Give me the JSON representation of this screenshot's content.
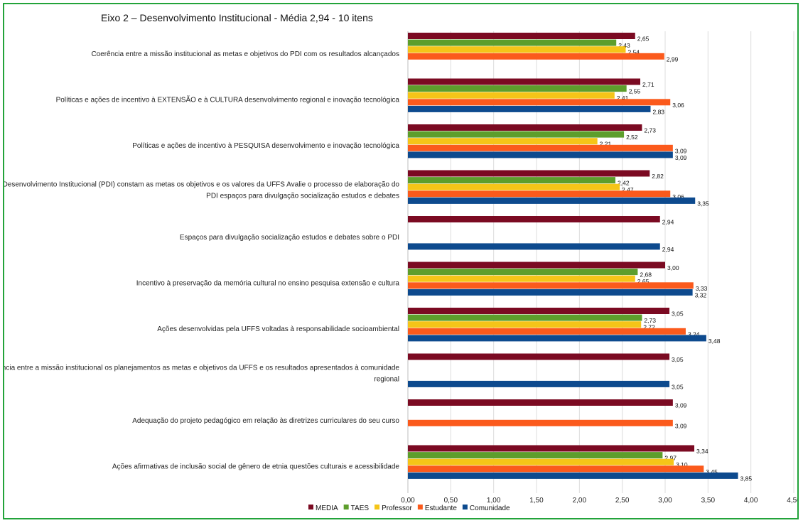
{
  "chart_data": {
    "type": "bar",
    "orientation": "horizontal",
    "title": "Eixo 2 – Desenvolvimento Institucional - Média 2,94 - 10 itens",
    "xlim": [
      0,
      4.5
    ],
    "xticks": [
      0,
      0.5,
      1,
      1.5,
      2,
      2.5,
      3,
      3.5,
      4,
      4.5
    ],
    "tick_labels": [
      "0,00",
      "0,50",
      "1,00",
      "1,50",
      "2,00",
      "2,50",
      "3,00",
      "3,50",
      "4,00",
      "4,50"
    ],
    "grid": true,
    "legend_position": "bottom",
    "categories": [
      [
        "Coerência entre a missão institucional as metas e objetivos do PDI com os resultados alcançados"
      ],
      [
        "Políticas e ações de incentivo à EXTENSÃO e à CULTURA desenvolvimento regional e inovação tecnológica"
      ],
      [
        "Políticas e ações de incentivo à PESQUISA desenvolvimento e inovação tecnológica"
      ],
      [
        "No Plano de Desenvolvimento Institucional (PDI) constam as metas os objetivos e os valores da UFFS Avalie o processo de elaboração do",
        "PDI espaços para divulgação socialização estudos e debates"
      ],
      [
        "Espaços para divulgação socialização estudos e debates sobre o PDI"
      ],
      [
        "Incentivo à preservação da memória cultural no ensino pesquisa extensão e cultura"
      ],
      [
        "Ações desenvolvidas pela UFFS voltadas à responsabilidade socioambiental"
      ],
      [
        "Coerência entre a missão institucional os planejamentos as metas e objetivos da UFFS e os resultados apresentados à comunidade",
        "regional"
      ],
      [
        "Adequação do projeto pedagógico em relação às diretrizes curriculares do seu curso"
      ],
      [
        "Ações afirmativas de inclusão social de gênero de etnia questões culturais e acessibilidade"
      ]
    ],
    "series": [
      {
        "name": "MEDIA",
        "color": "#7b0a22",
        "values": [
          2.65,
          2.71,
          2.73,
          2.82,
          2.94,
          3.0,
          3.05,
          3.05,
          3.09,
          3.34
        ],
        "labels": [
          "2,65",
          "2,71",
          "2,73",
          "2,82",
          "2,94",
          "3,00",
          "3,05",
          "3,05",
          "3,09",
          "3,34"
        ]
      },
      {
        "name": "TAES",
        "color": "#5d9e2c",
        "values": [
          2.43,
          2.55,
          2.52,
          2.42,
          null,
          2.68,
          2.73,
          null,
          null,
          2.97
        ],
        "labels": [
          "2,43",
          "2,55",
          "2,52",
          "2,42",
          null,
          "2,68",
          "2,73",
          null,
          null,
          "2,97"
        ]
      },
      {
        "name": "Professor",
        "color": "#f5c518",
        "values": [
          2.54,
          2.41,
          2.21,
          2.47,
          null,
          2.65,
          2.72,
          null,
          null,
          3.1
        ],
        "labels": [
          "2,54",
          "2,41",
          "2,21",
          "2,47",
          null,
          "2,65",
          "2,72",
          null,
          null,
          "3,10"
        ]
      },
      {
        "name": "Estudante",
        "color": "#fb5a1c",
        "values": [
          2.99,
          3.06,
          3.09,
          3.06,
          null,
          3.33,
          3.24,
          null,
          3.09,
          3.45
        ],
        "labels": [
          "2,99",
          "3,06",
          "3,09",
          "3,06",
          null,
          "3,33",
          "3,24",
          null,
          "3,09",
          "3,45"
        ]
      },
      {
        "name": "Comunidade",
        "color": "#0d4a8e",
        "values": [
          null,
          2.83,
          3.09,
          3.35,
          2.94,
          3.32,
          3.48,
          3.05,
          null,
          3.85
        ],
        "labels": [
          null,
          "2,83",
          "3,09",
          "3,35",
          "2,94",
          "3,32",
          "3,48",
          "3,05",
          null,
          "3,85"
        ]
      }
    ]
  }
}
